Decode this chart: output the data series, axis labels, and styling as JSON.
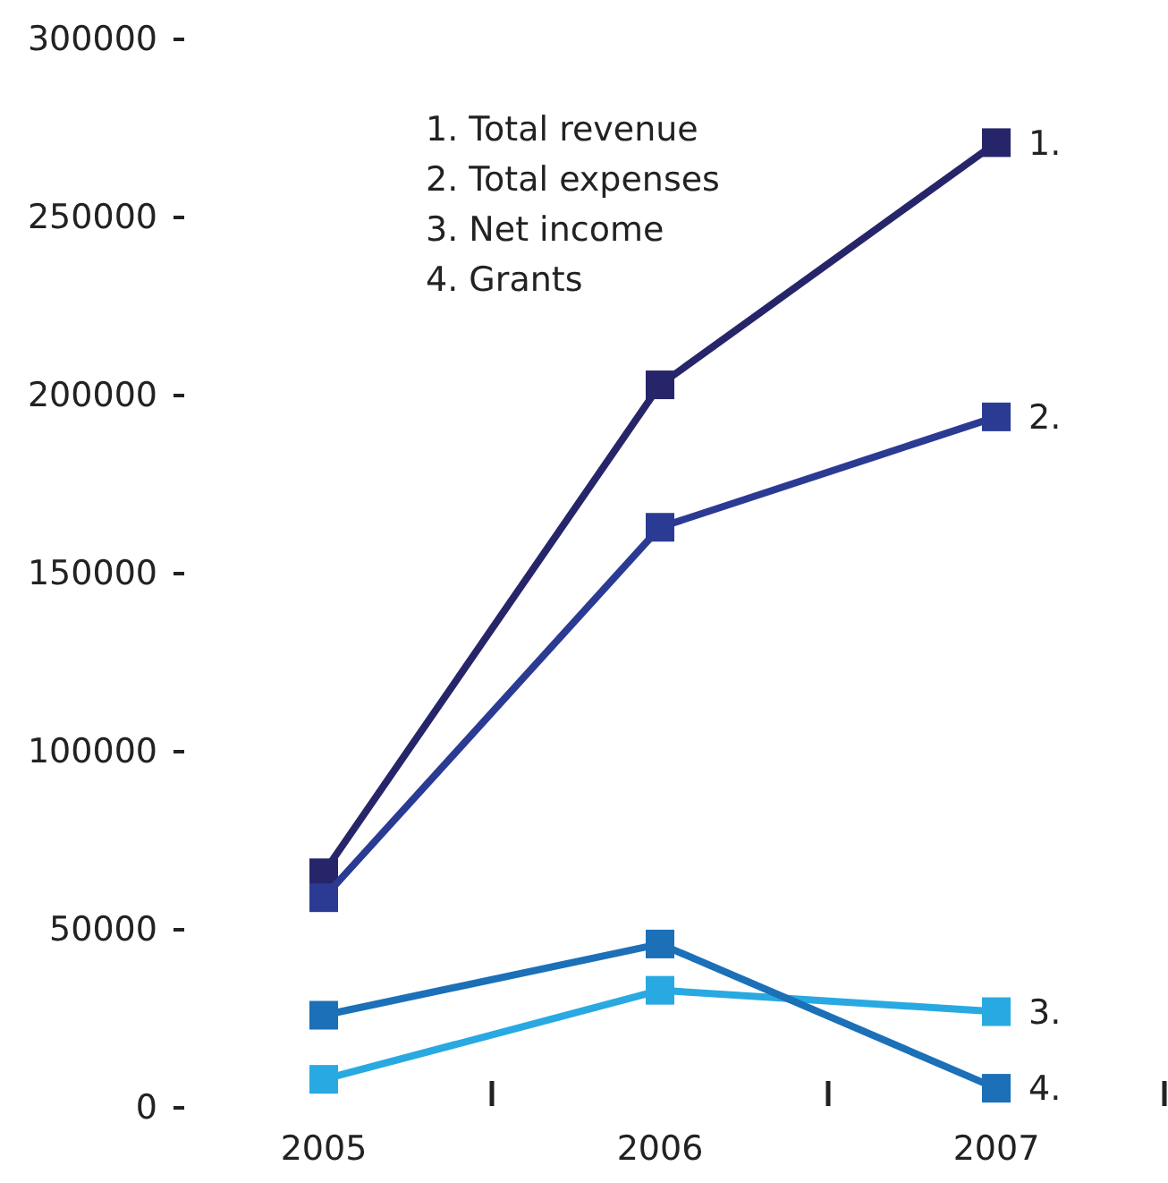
{
  "chart_data": {
    "type": "line",
    "categories": [
      "2005",
      "2006",
      "2007"
    ],
    "series": [
      {
        "name": "1.",
        "color": "#27256a",
        "values": [
          66000,
          203000,
          271000
        ]
      },
      {
        "name": "2.",
        "color": "#2b3b94",
        "values": [
          59000,
          163000,
          194000
        ]
      },
      {
        "name": "3.",
        "color": "#29a9e1",
        "values": [
          8000,
          33000,
          27000
        ]
      },
      {
        "name": "4.",
        "color": "#1b70b8",
        "values": [
          26000,
          46000,
          5500
        ]
      }
    ],
    "ylim": [
      0,
      300000
    ],
    "yticks": [
      0,
      50000,
      100000,
      150000,
      200000,
      250000,
      300000
    ],
    "marker": "square",
    "line_style": "solid",
    "annotations": [
      "1. Total revenue",
      "2. Total expenses",
      "3. Net income",
      "4. Grants"
    ]
  }
}
